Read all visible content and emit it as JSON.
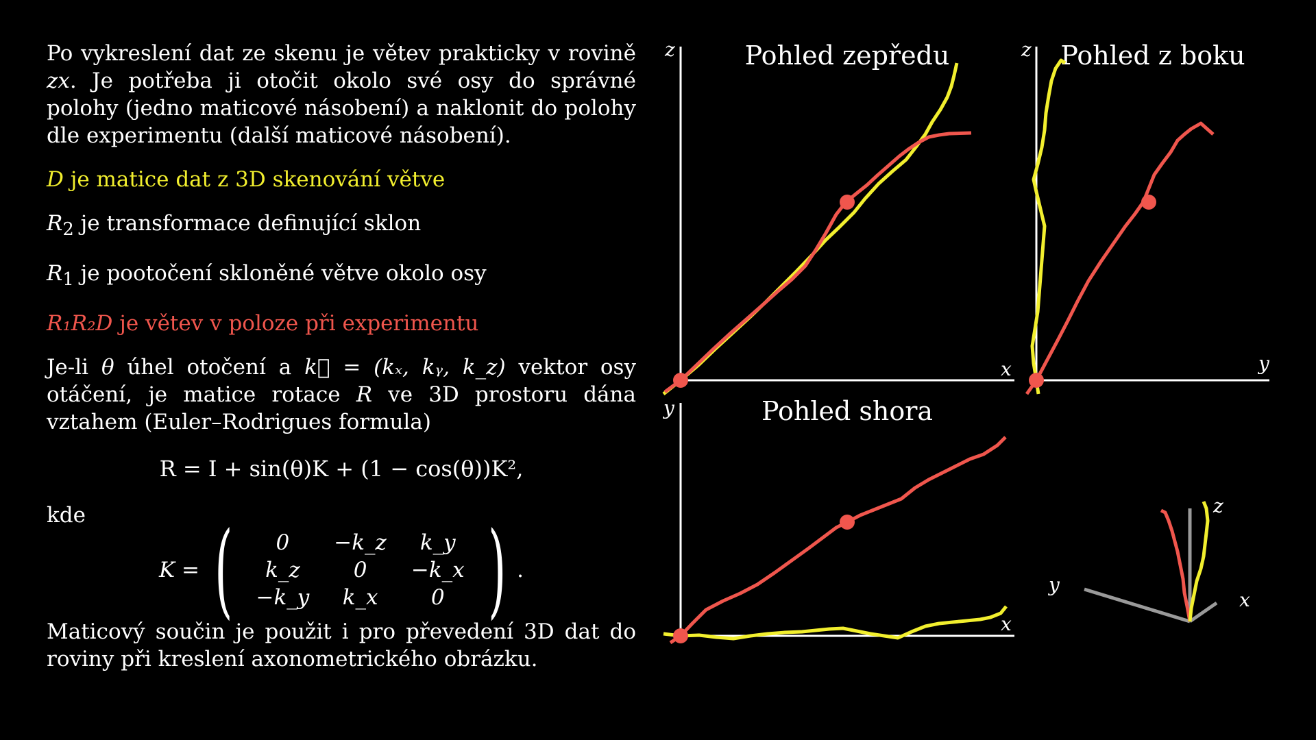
{
  "text": {
    "intro_a": "Po vykreslení dat ze skenu je větev prakticky v rovině ",
    "intro_var": "zx",
    "intro_b": ". Je potřeba ji otočit okolo své osy do správné polohy (jedno maticové násobení) a naklonit do polohy dle experimentu (další maticové násobení).",
    "d_sym": "D",
    "d_text": " je matice dat z 3D skenování větve",
    "r2_sym": "R",
    "r2_sub": "2",
    "r2_text": " je transformace definující sklon",
    "r1_sym": "R",
    "r1_sub": "1",
    "r1_text": " je pootočení skloněné větve okolo osy",
    "r1r2d_sym": "R₁R₂D",
    "r1r2d_text": " je větev v poloze při experimentu",
    "rot_a": "Je-li ",
    "rot_theta": "θ",
    "rot_b": " úhel otočení a ",
    "rot_k": "k⃗ = (kₓ, kᵧ, k_z)",
    "rot_c": " vektor osy otáčení, je matice rotace ",
    "rot_R": "R",
    "rot_d": " ve 3D prostoru dána vztahem (Euler–Rodrigues formula)",
    "formula": "R = I + sin(θ)K + (1 − cos(θ))K²,",
    "kde": "kde",
    "matrix_lhs": "K =",
    "matrix": [
      [
        "0",
        "−k_z",
        "k_y"
      ],
      [
        "k_z",
        "0",
        "−k_x"
      ],
      [
        "−k_y",
        "k_x",
        "0"
      ]
    ],
    "matrix_end": ".",
    "outro": "Maticový součin je použit i pro převedení 3D dat do roviny při kreslení axonometrického obrázku."
  },
  "plots": {
    "front": {
      "title": "Pohled zepředu",
      "xlabel": "x",
      "ylabel": "z"
    },
    "side": {
      "title": "Pohled z boku",
      "xlabel": "y",
      "ylabel": "z"
    },
    "top": {
      "title": "Pohled shora",
      "xlabel": "x",
      "ylabel": "y"
    },
    "axo": {
      "x": "x",
      "y": "y",
      "z": "z"
    }
  },
  "colors": {
    "yellow": "#f2ef2e",
    "red": "#f0564d",
    "axis": "#ffffff",
    "axo_axis": "#9a9a9a"
  }
}
